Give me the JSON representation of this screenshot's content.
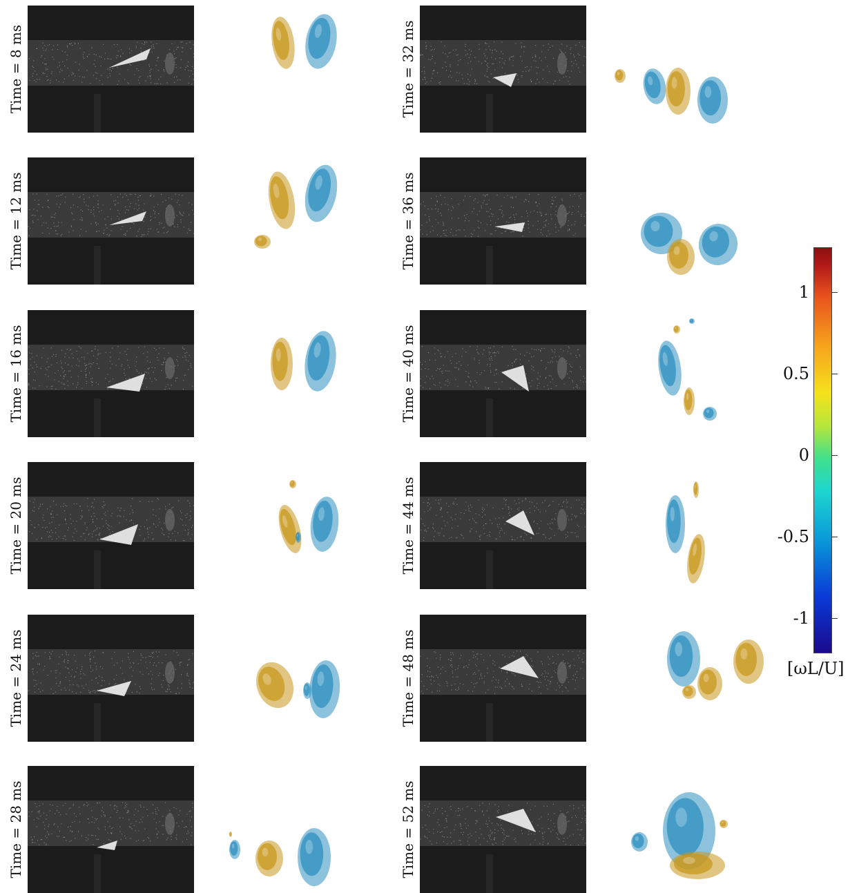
{
  "panels_left": [
    {
      "label": "Time = 8 ms"
    },
    {
      "label": "Time = 12 ms"
    },
    {
      "label": "Time = 16 ms"
    },
    {
      "label": "Time = 20 ms"
    },
    {
      "label": "Time = 24 ms"
    },
    {
      "label": "Time = 28 ms"
    }
  ],
  "panels_right": [
    {
      "label": "Time = 32 ms"
    },
    {
      "label": "Time = 36 ms"
    },
    {
      "label": "Time = 40 ms"
    },
    {
      "label": "Time = 44 ms"
    },
    {
      "label": "Time = 48 ms"
    },
    {
      "label": "Time = 52 ms"
    }
  ],
  "colorbar": {
    "ticks": [
      "1",
      "0.5",
      "0",
      "-0.5",
      "-1"
    ],
    "unit": "[ωL/U]",
    "colors": {
      "positive": "#c8981e",
      "negative": "#2e8fc0"
    }
  }
}
